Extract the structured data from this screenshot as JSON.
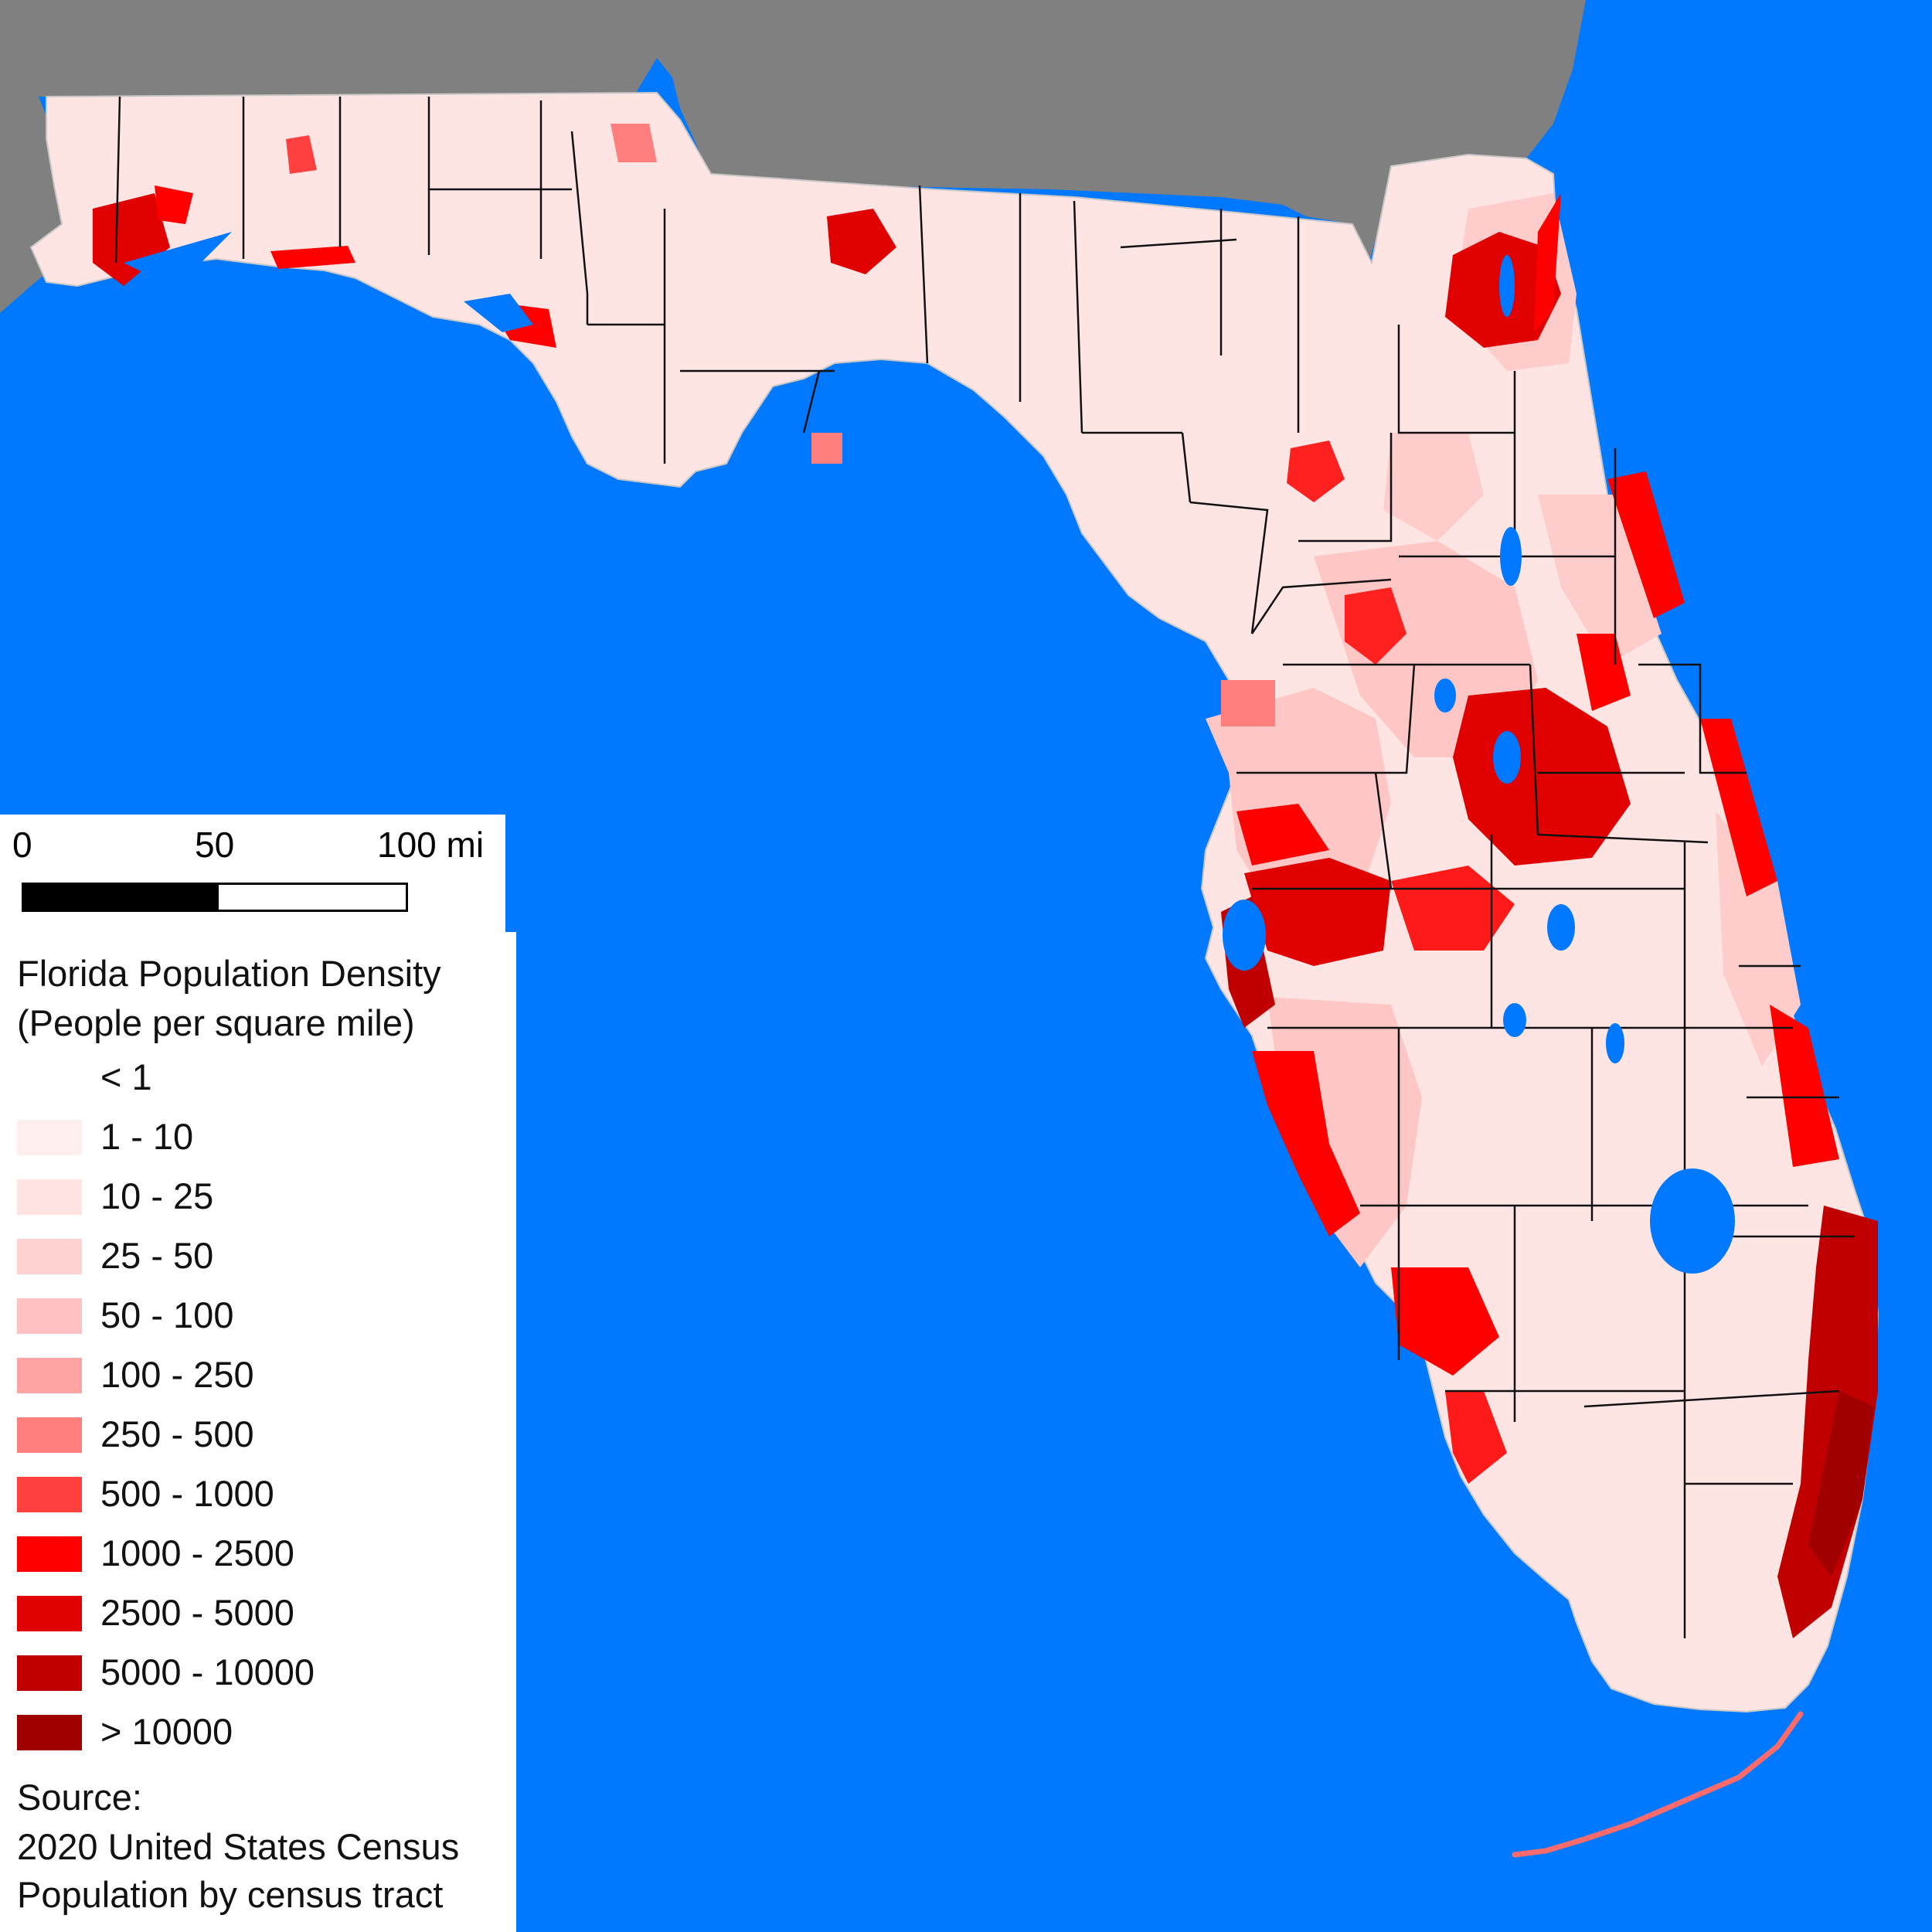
{
  "scale": {
    "label_0": "0",
    "label_50": "50",
    "label_100": "100 mi"
  },
  "legend": {
    "title_line1": "Florida Population Density",
    "title_line2": "(People per square mile)",
    "classes": [
      {
        "label": "< 1",
        "color": "#ffffff"
      },
      {
        "label": "1 - 10",
        "color": "#ffefef"
      },
      {
        "label": "10 - 25",
        "color": "#ffe2e2"
      },
      {
        "label": "25 - 50",
        "color": "#ffd2d2"
      },
      {
        "label": "50 - 100",
        "color": "#ffc1c1"
      },
      {
        "label": "100 - 250",
        "color": "#ffa3a3"
      },
      {
        "label": "250 - 500",
        "color": "#ff7f7f"
      },
      {
        "label": "500 - 1000",
        "color": "#ff4040"
      },
      {
        "label": "1000 - 2500",
        "color": "#ff0000"
      },
      {
        "label": "2500 - 5000",
        "color": "#e00000"
      },
      {
        "label": "5000 - 10000",
        "color": "#c00000"
      },
      {
        "label": "> 10000",
        "color": "#a00000"
      }
    ]
  },
  "source": {
    "line1": "Source:",
    "line2": "2020 United States Census",
    "line3": "Population by census tract"
  },
  "colors": {
    "water": "#0078ff",
    "neighbor_states": "#808080",
    "county_border": "#111111"
  }
}
